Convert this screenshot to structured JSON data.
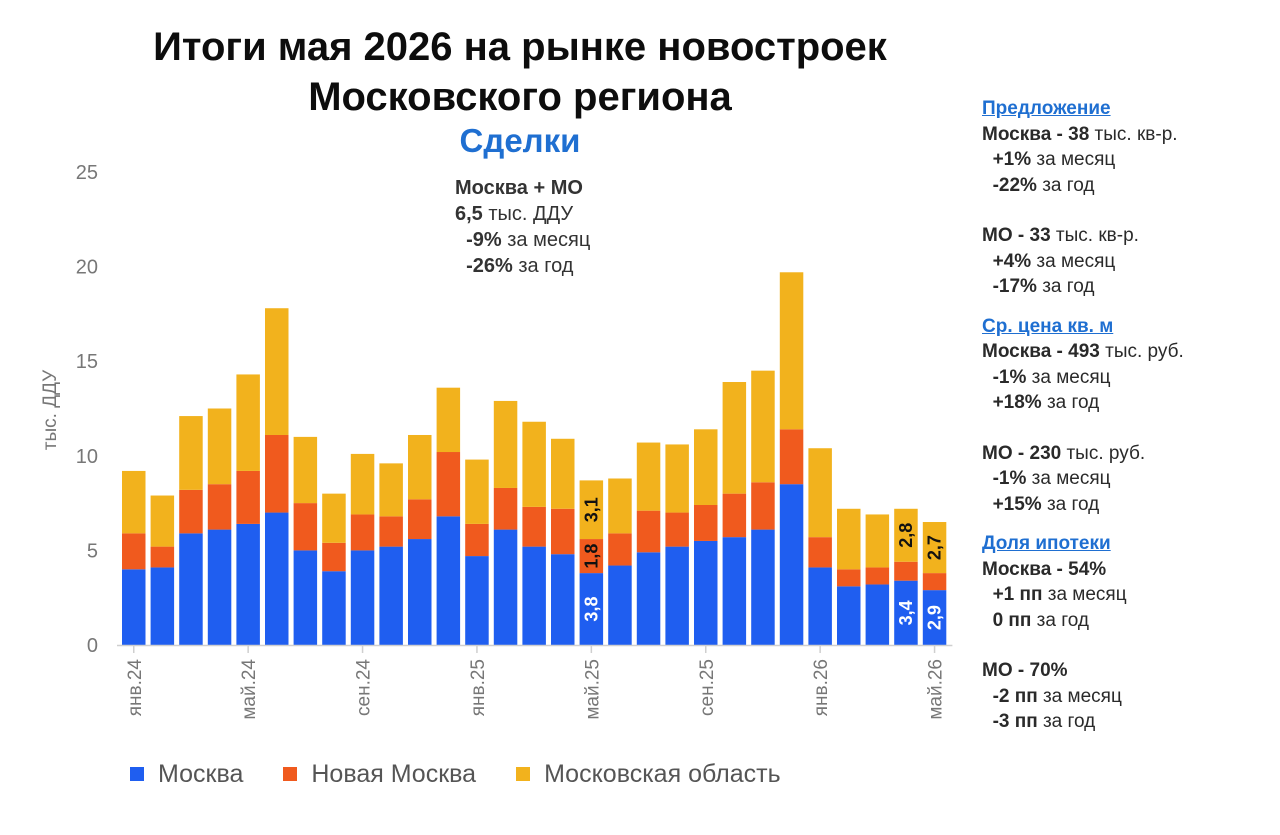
{
  "title_line1": "Итоги мая 2026 на рынке новостроек",
  "title_line2": "Московского региона",
  "subtitle": "Сделки",
  "summary": {
    "line1": "Москва + МО",
    "value": "6,5",
    "value_unit": " тыс. ДДУ",
    "mom": "-9%",
    "mom_label": " за месяц",
    "yoy": "-26%",
    "yoy_label": " за год"
  },
  "legend": {
    "moscow": "Москва",
    "new_moscow": "Новая Москва",
    "region": "Московская область"
  },
  "colors": {
    "moscow": "#1f5ef0",
    "new_moscow": "#f05a1e",
    "region": "#f2b21d"
  },
  "sidebar": {
    "supply": {
      "heading": "Предложение",
      "msk_label": "Москва - ",
      "msk_value": "38",
      "msk_unit": " тыс. кв-р.",
      "msk_mom": "+1%",
      "msk_mom_label": " за месяц",
      "msk_yoy": "-22%",
      "msk_yoy_label": " за год",
      "mo_label": "МО - ",
      "mo_value": "33",
      "mo_unit": " тыс. кв-р.",
      "mo_mom": "+4%",
      "mo_mom_label": " за месяц",
      "mo_yoy": "-17%",
      "mo_yoy_label": " за год"
    },
    "price": {
      "heading": "Ср. цена кв. м",
      "msk_label": "Москва - ",
      "msk_value": "493",
      "msk_unit": " тыс. руб.",
      "msk_mom": "-1%",
      "msk_mom_label": " за месяц",
      "msk_yoy": "+18%",
      "msk_yoy_label": " за год",
      "mo_label": "МО - ",
      "mo_value": "230",
      "mo_unit": " тыс. руб.",
      "mo_mom": "-1%",
      "mo_mom_label": " за месяц",
      "mo_yoy": "+15%",
      "mo_yoy_label": " за год"
    },
    "mortgage": {
      "heading": "Доля ипотеки",
      "msk_label": "Москва - ",
      "msk_value": "54%",
      "msk_mom": "+1 пп",
      "msk_mom_label": " за месяц",
      "msk_yoy": "0 пп",
      "msk_yoy_label": " за год",
      "mo_label": "МО - ",
      "mo_value": "70%",
      "mo_mom": "-2 пп",
      "mo_mom_label": " за месяц",
      "mo_yoy": "-3 пп",
      "mo_yoy_label": " за год"
    }
  },
  "chart_data": {
    "type": "bar",
    "stacked": true,
    "ylabel": "тыс. ДДУ",
    "ylim": [
      0,
      25
    ],
    "yticks": [
      0,
      5,
      10,
      15,
      20,
      25
    ],
    "grid": false,
    "legend_position": "bottom",
    "categories": [
      "янв.24",
      "фев.24",
      "мар.24",
      "апр.24",
      "май.24",
      "июн.24",
      "июл.24",
      "авг.24",
      "сен.24",
      "окт.24",
      "ноя.24",
      "дек.24",
      "янв.25",
      "фев.25",
      "мар.25",
      "апр.25",
      "май.25",
      "июн.25",
      "июл.25",
      "авг.25",
      "сен.25",
      "окт.25",
      "ноя.25",
      "дек.25",
      "янв.26",
      "фев.26",
      "мар.26",
      "апр.26",
      "май.26"
    ],
    "xtick_labels": [
      "янв.24",
      "май.24",
      "сен.24",
      "янв.25",
      "май.25",
      "сен.25",
      "янв.26",
      "май.26"
    ],
    "xtick_indices": [
      0,
      4,
      8,
      12,
      16,
      20,
      24,
      28
    ],
    "series": [
      {
        "name": "Москва",
        "key": "moscow",
        "values": [
          4.0,
          4.1,
          5.9,
          6.1,
          6.4,
          7.0,
          5.0,
          3.9,
          5.0,
          5.2,
          5.6,
          6.8,
          4.7,
          6.1,
          5.2,
          4.8,
          3.8,
          4.2,
          4.9,
          5.2,
          5.5,
          5.7,
          6.1,
          8.5,
          4.1,
          3.1,
          3.2,
          3.4,
          2.9
        ]
      },
      {
        "name": "Новая Москва",
        "key": "new_moscow",
        "values": [
          1.9,
          1.1,
          2.3,
          2.4,
          2.8,
          4.1,
          2.5,
          1.5,
          1.9,
          1.6,
          2.1,
          3.4,
          1.7,
          2.2,
          2.1,
          2.4,
          1.8,
          1.7,
          2.2,
          1.8,
          1.9,
          2.3,
          2.5,
          2.9,
          1.6,
          0.9,
          0.9,
          1.0,
          0.9
        ]
      },
      {
        "name": "Московская область",
        "key": "region",
        "values": [
          3.3,
          2.7,
          3.9,
          4.0,
          5.1,
          6.7,
          3.5,
          2.6,
          3.2,
          2.8,
          3.4,
          3.4,
          3.4,
          4.6,
          4.5,
          3.7,
          3.1,
          2.9,
          3.6,
          3.6,
          4.0,
          5.9,
          5.9,
          8.3,
          4.7,
          3.2,
          2.8,
          2.8,
          2.7
        ]
      }
    ],
    "data_labels": [
      {
        "index": 16,
        "series": "moscow",
        "text": "3,8"
      },
      {
        "index": 16,
        "series": "new_moscow",
        "text": "1,8"
      },
      {
        "index": 16,
        "series": "region",
        "text": "3,1"
      },
      {
        "index": 27,
        "series": "moscow",
        "text": "3,4"
      },
      {
        "index": 27,
        "series": "region",
        "text": "2,8"
      },
      {
        "index": 28,
        "series": "moscow",
        "text": "2,9"
      },
      {
        "index": 28,
        "series": "region",
        "text": "2,7"
      }
    ]
  }
}
